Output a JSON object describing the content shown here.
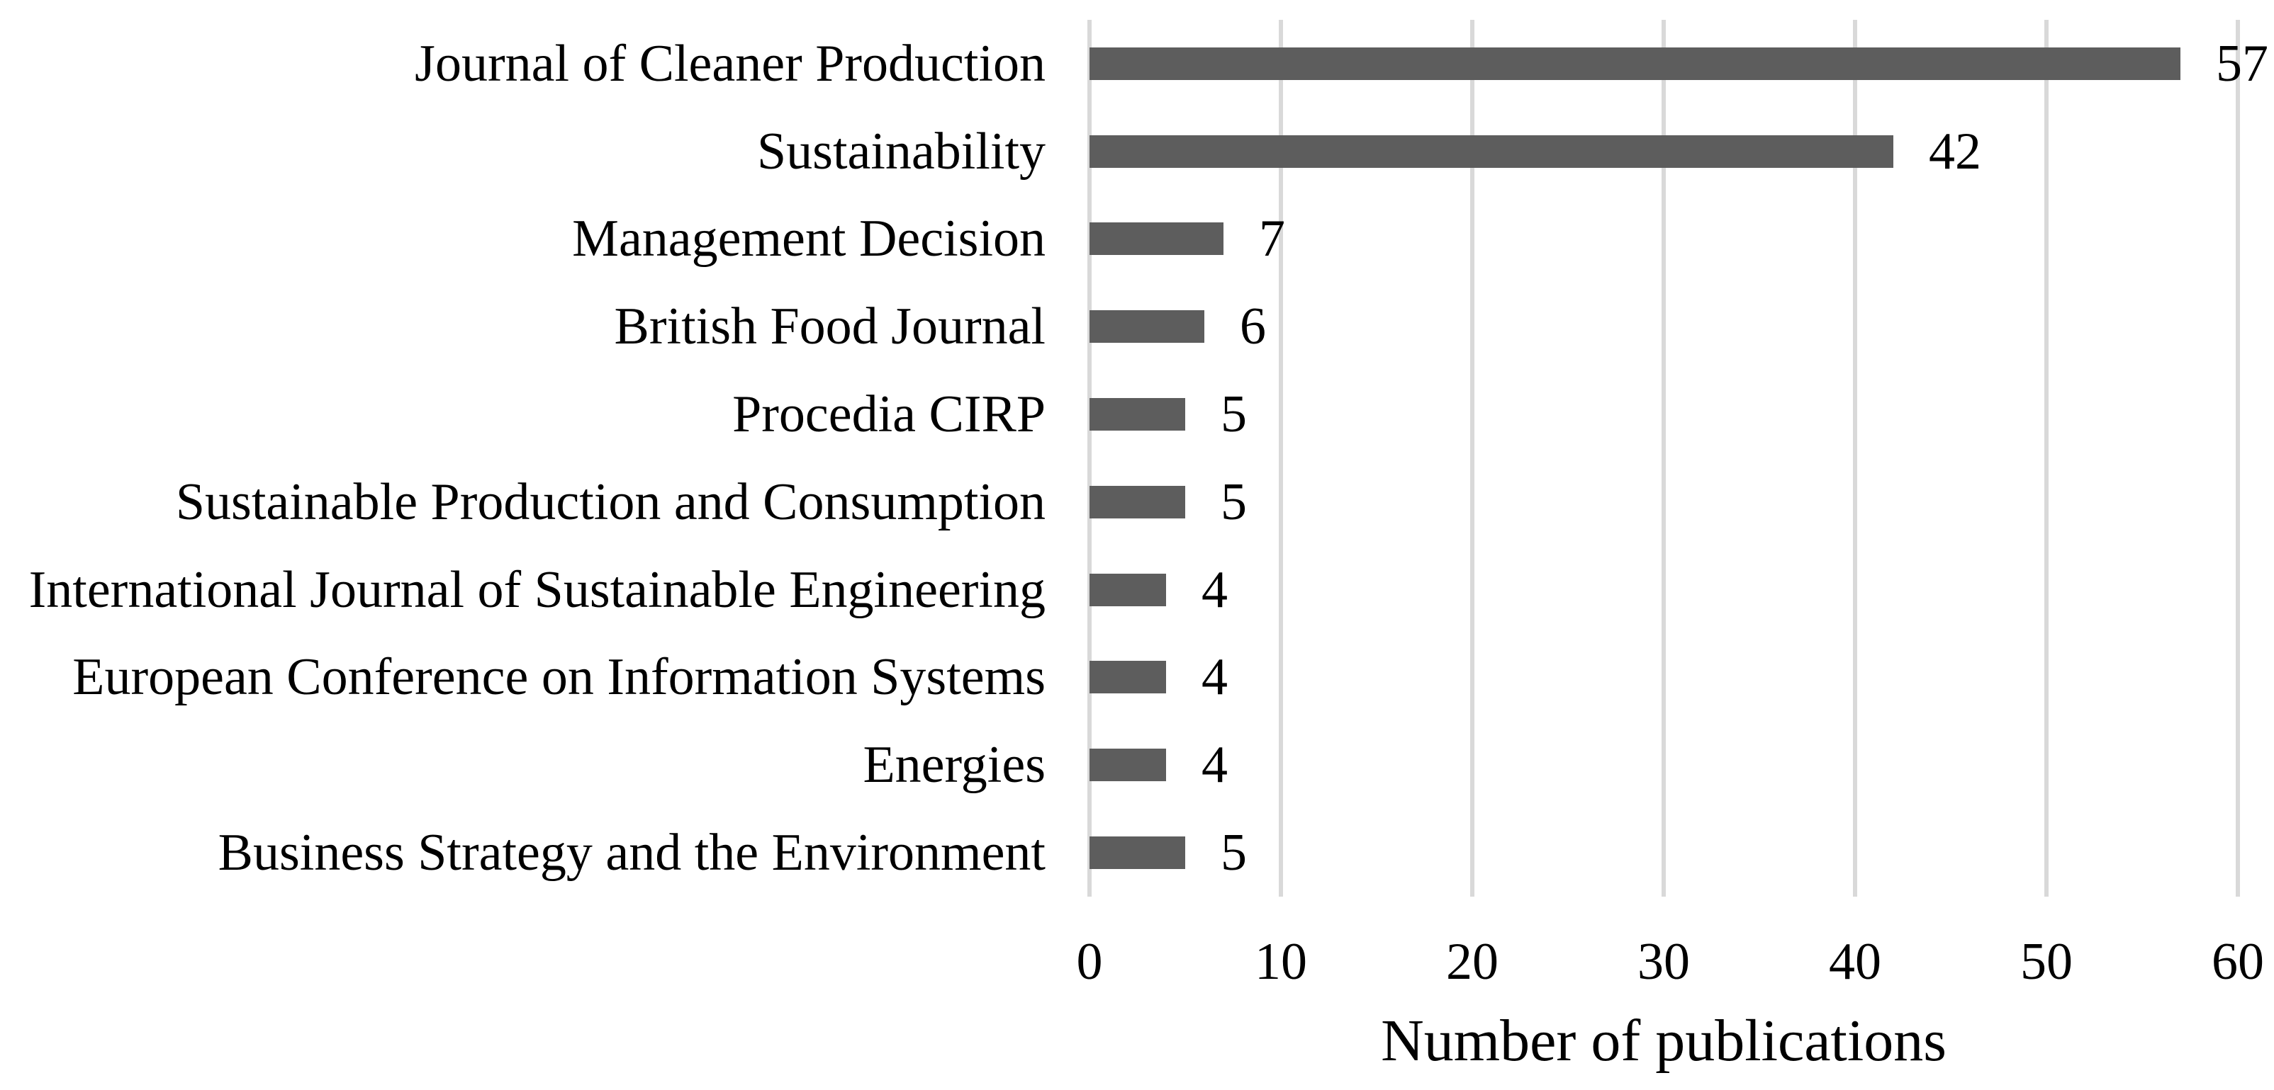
{
  "chart_data": {
    "type": "bar",
    "orientation": "horizontal",
    "title": "",
    "xlabel": "Number of publications",
    "ylabel": "",
    "categories": [
      "Journal of Cleaner Production",
      "Sustainability",
      "Management Decision",
      "British Food Journal",
      "Procedia CIRP",
      "Sustainable Production and Consumption",
      "International Journal of Sustainable Engineering",
      "European Conference on Information Systems",
      "Energies",
      "Business Strategy and the Environment"
    ],
    "values": [
      57,
      42,
      7,
      6,
      5,
      5,
      4,
      4,
      4,
      5
    ],
    "value_labels_shown": true,
    "xticks": [
      0,
      10,
      20,
      30,
      40,
      50,
      60
    ],
    "xlim": [
      0,
      60
    ],
    "grid": "vertical-gridlines",
    "legend": "none",
    "colors": {
      "bar": "#5d5d5d",
      "gridline": "#d9d9d9",
      "text": "#000000",
      "background": "#ffffff"
    }
  }
}
